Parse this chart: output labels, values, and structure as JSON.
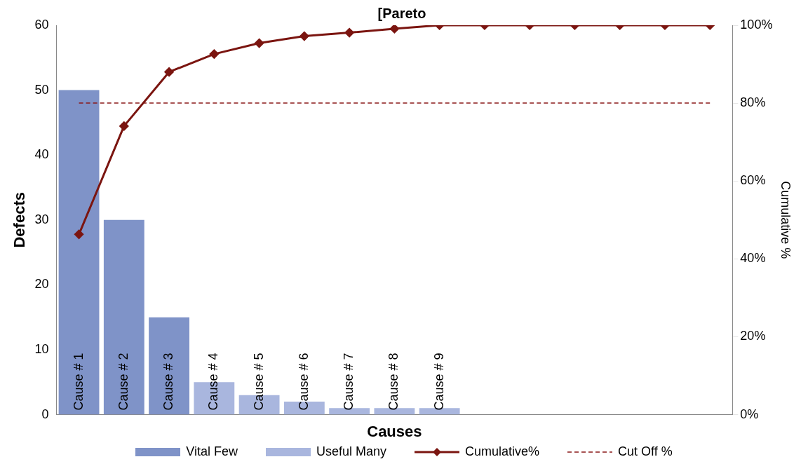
{
  "chart_data": {
    "type": "bar",
    "title": "[Pareto",
    "xlabel": "Causes",
    "ylabel": "Defects",
    "y2label": "Cumulative %",
    "categories": [
      "Cause # 1",
      "Cause # 2",
      "Cause # 3",
      "Cause # 4",
      "Cause # 5",
      "Cause # 6",
      "Cause # 7",
      "Cause # 8",
      "Cause # 9",
      null,
      null,
      null,
      null,
      null,
      null
    ],
    "stacked": true,
    "grid": false,
    "legend": "bottom",
    "ylim": [
      0,
      60
    ],
    "yticks": [
      0,
      10,
      20,
      30,
      40,
      50,
      60
    ],
    "y2lim": [
      0,
      100
    ],
    "y2ticks": [
      {
        "value": 0,
        "label": "0%"
      },
      {
        "value": 20,
        "label": "20%"
      },
      {
        "value": 40,
        "label": "40%"
      },
      {
        "value": 60,
        "label": "60%"
      },
      {
        "value": 80,
        "label": "80%"
      },
      {
        "value": 100,
        "label": "100%"
      }
    ],
    "series": [
      {
        "name": "Vital Few",
        "color": "#7f93c8",
        "values": [
          50,
          30,
          15,
          null,
          null,
          null,
          null,
          null,
          null,
          null,
          null,
          null,
          null,
          null,
          null
        ]
      },
      {
        "name": "Useful Many",
        "color": "#a9b6de",
        "values": [
          null,
          null,
          null,
          5,
          3,
          2,
          1,
          1,
          1,
          null,
          null,
          null,
          null,
          null,
          null
        ]
      },
      {
        "name": "Cumulative%",
        "type": "line",
        "axis": "y2",
        "color": "#7b1510",
        "marker": "diamond",
        "line_style": "solid",
        "values": [
          46.3,
          74.1,
          88,
          92.6,
          95.4,
          97.2,
          98.1,
          99.1,
          100,
          100,
          100,
          100,
          100,
          100,
          100
        ]
      },
      {
        "name": "Cut Off %",
        "type": "line",
        "axis": "y2",
        "color": "#8b1a1a",
        "marker": "none",
        "line_style": "dashed",
        "values": [
          80,
          80,
          80,
          80,
          80,
          80,
          80,
          80,
          80,
          80,
          80,
          80,
          80,
          80,
          80
        ]
      }
    ]
  }
}
